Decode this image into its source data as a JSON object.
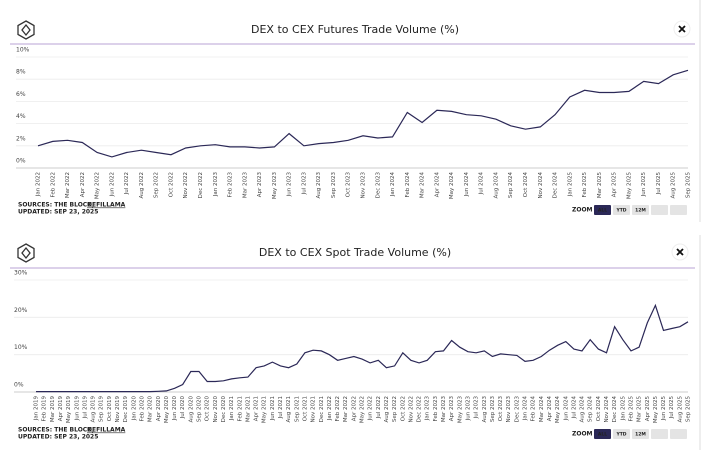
{
  "chart_data": [
    {
      "type": "line",
      "title": "DEX to CEX Futures Trade Volume (%)",
      "categories": [
        "Jan 2022",
        "Feb 2022",
        "Mar 2022",
        "Apr 2022",
        "May 2022",
        "Jun 2022",
        "Jul 2022",
        "Aug 2022",
        "Sep 2022",
        "Oct 2022",
        "Nov 2022",
        "Dec 2022",
        "Jan 2023",
        "Feb 2023",
        "Mar 2023",
        "Apr 2023",
        "May 2023",
        "Jun 2023",
        "Jul 2023",
        "Aug 2023",
        "Sep 2023",
        "Oct 2023",
        "Nov 2023",
        "Dec 2023",
        "Jan 2024",
        "Feb 2024",
        "Mar 2024",
        "Apr 2024",
        "May 2024",
        "Jun 2024",
        "Jul 2024",
        "Aug 2024",
        "Sep 2024",
        "Oct 2024",
        "Nov 2024",
        "Dec 2024",
        "Jan 2025",
        "Feb 2025",
        "Mar 2025",
        "Apr 2025",
        "May 2025",
        "Jun 2025",
        "Jul 2025",
        "Aug 2025",
        "Sep 2025"
      ],
      "values": [
        2.0,
        2.4,
        2.5,
        2.3,
        1.4,
        1.0,
        1.4,
        1.6,
        1.4,
        1.2,
        1.8,
        2.0,
        2.1,
        1.9,
        1.9,
        1.8,
        1.9,
        3.1,
        2.0,
        2.2,
        2.3,
        2.5,
        2.9,
        2.7,
        2.8,
        5.0,
        4.1,
        5.2,
        5.1,
        4.8,
        4.7,
        4.4,
        3.8,
        3.5,
        3.7,
        4.8,
        6.4,
        7.0,
        6.8,
        6.8,
        6.9,
        7.8,
        7.6,
        8.4,
        8.8
      ],
      "color": "#2b2857",
      "ylim": [
        0,
        10
      ],
      "yticks": [
        {
          "value": 0,
          "label": "0%"
        },
        {
          "value": 2,
          "label": "2%"
        },
        {
          "value": 4,
          "label": "4%"
        },
        {
          "value": 6,
          "label": "6%"
        },
        {
          "value": 8,
          "label": "8%"
        },
        {
          "value": 10,
          "label": "10%"
        }
      ],
      "grid": true,
      "sources": "SOURCES: THE BLOCK,",
      "sources_link": "DEFILLAMA",
      "updated": "UPDATED: SEP 23, 2025",
      "zoom_label": "ZOOM",
      "zoom_buttons": [
        "ALL",
        "YTD",
        "12M"
      ]
    },
    {
      "type": "line",
      "title": "DEX to CEX Spot Trade Volume (%)",
      "categories": [
        "Jan 2019",
        "Feb 2019",
        "Mar 2019",
        "Apr 2019",
        "May 2019",
        "Jun 2019",
        "Jul 2019",
        "Aug 2019",
        "Sep 2019",
        "Oct 2019",
        "Nov 2019",
        "Dec 2019",
        "Jan 2020",
        "Feb 2020",
        "Mar 2020",
        "Apr 2020",
        "May 2020",
        "Jun 2020",
        "Jul 2020",
        "Aug 2020",
        "Sep 2020",
        "Oct 2020",
        "Nov 2020",
        "Dec 2020",
        "Jan 2021",
        "Feb 2021",
        "Mar 2021",
        "Apr 2021",
        "May 2021",
        "Jun 2021",
        "Jul 2021",
        "Aug 2021",
        "Sep 2021",
        "Oct 2021",
        "Nov 2021",
        "Dec 2021",
        "Jan 2022",
        "Feb 2022",
        "Mar 2022",
        "Apr 2022",
        "May 2022",
        "Jun 2022",
        "Jul 2022",
        "Aug 2022",
        "Sep 2022",
        "Oct 2022",
        "Nov 2022",
        "Dec 2022",
        "Jan 2023",
        "Feb 2023",
        "Mar 2023",
        "Apr 2023",
        "May 2023",
        "Jun 2023",
        "Jul 2023",
        "Aug 2023",
        "Sep 2023",
        "Oct 2023",
        "Nov 2023",
        "Dec 2023",
        "Jan 2024",
        "Feb 2024",
        "Mar 2024",
        "Apr 2024",
        "May 2024",
        "Jun 2024",
        "Jul 2024",
        "Aug 2024",
        "Sep 2024",
        "Oct 2024",
        "Nov 2024",
        "Dec 2024",
        "Jan 2025",
        "Feb 2025",
        "Mar 2025",
        "Apr 2025",
        "May 2025",
        "Jun 2025",
        "Jul 2025",
        "Aug 2025",
        "Sep 2025"
      ],
      "values": [
        0.1,
        0.1,
        0.1,
        0.1,
        0.1,
        0.1,
        0.1,
        0.1,
        0.1,
        0.1,
        0.1,
        0.1,
        0.1,
        0.1,
        0.1,
        0.2,
        0.3,
        1.0,
        2.0,
        5.5,
        5.5,
        2.8,
        2.8,
        3.0,
        3.5,
        3.8,
        4.0,
        6.5,
        7.0,
        8.0,
        7.0,
        6.5,
        7.5,
        10.5,
        11.2,
        11.0,
        10.0,
        8.5,
        9.0,
        9.5,
        8.8,
        7.8,
        8.5,
        6.5,
        7.0,
        10.5,
        8.5,
        7.8,
        8.5,
        10.8,
        11.0,
        13.8,
        12.0,
        10.8,
        10.5,
        11.0,
        9.5,
        10.2,
        10.0,
        9.8,
        8.2,
        8.5,
        9.5,
        11.2,
        12.5,
        13.5,
        11.5,
        11.0,
        14.0,
        11.5,
        10.5,
        17.5,
        14.0,
        11.0,
        12.0,
        18.5,
        23.2,
        16.5,
        17.0,
        17.5,
        18.8
      ],
      "color": "#2b2857",
      "ylim": [
        0,
        30
      ],
      "yticks": [
        {
          "value": 0,
          "label": "0%"
        },
        {
          "value": 10,
          "label": "10%"
        },
        {
          "value": 20,
          "label": "20%"
        },
        {
          "value": 30,
          "label": "30%"
        }
      ],
      "grid": true,
      "sources": "SOURCES: THE BLOCK,",
      "sources_link": "DEFILLAMA",
      "updated": "UPDATED: SEP 23, 2025",
      "zoom_label": "ZOOM",
      "zoom_buttons": [
        "ALL",
        "YTD",
        "12M"
      ]
    }
  ]
}
